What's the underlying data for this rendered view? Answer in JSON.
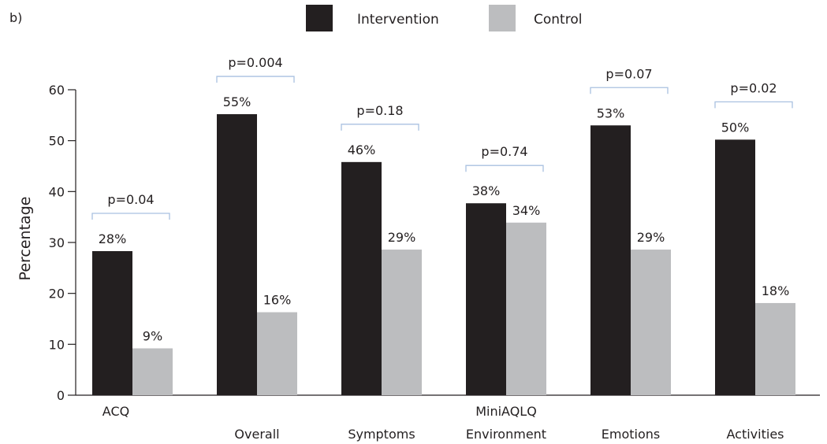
{
  "panel_label": "b)",
  "chart_data": {
    "type": "bar",
    "title": "",
    "xlabel": "",
    "ylabel": "Percentage",
    "ylim": [
      0,
      60
    ],
    "yticks": [
      0,
      10,
      20,
      30,
      40,
      50,
      60
    ],
    "legend_position": "top-center",
    "categories": [
      "ACQ",
      "Overall",
      "Symptoms",
      "Environment",
      "Emotions",
      "Activities"
    ],
    "group_label": {
      "text": "MiniAQLQ",
      "over": "Environment"
    },
    "series": [
      {
        "name": "Intervention",
        "color": "#231f20",
        "values": [
          28.3,
          55.2,
          45.8,
          37.7,
          53.0,
          50.2
        ],
        "labels": [
          "28%",
          "55%",
          "46%",
          "38%",
          "53%",
          "50%"
        ]
      },
      {
        "name": "Control",
        "color": "#bcbdbf",
        "values": [
          9.2,
          16.3,
          28.6,
          33.9,
          28.6,
          18.1
        ],
        "labels": [
          "9%",
          "16%",
          "29%",
          "34%",
          "29%",
          "18%"
        ]
      }
    ],
    "p_values": [
      "p=0.04",
      "p=0.004",
      "p=0.18",
      "p=0.74",
      "p=0.07",
      "p=0.02"
    ]
  }
}
